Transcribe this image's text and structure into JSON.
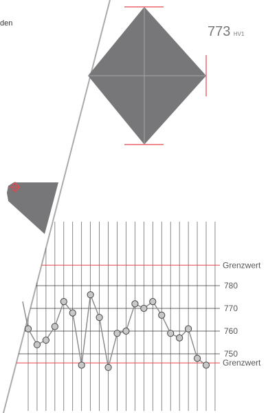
{
  "corner_text": "den",
  "indent_reading": {
    "value": "773",
    "unit": "HV1"
  },
  "colors": {
    "diamond": "#77777a",
    "red": "#e8434b",
    "grid": "#333333",
    "series": "#8c8c8c",
    "point_fill": "#c8c8c8",
    "point_stroke": "#444444",
    "indenter_line": "#aaaaaa"
  },
  "chart_data": {
    "type": "line",
    "ylim": [
      742,
      783
    ],
    "y_ticks": [
      "780",
      "770",
      "760",
      "750"
    ],
    "limits": [
      {
        "label": "Grenzwert",
        "value": 789
      },
      {
        "label": "Grenzwert",
        "value": 746
      }
    ],
    "series": [
      {
        "values": [
          761,
          754,
          756,
          762,
          773,
          768,
          745,
          776,
          766,
          744,
          759,
          760,
          772,
          770,
          773,
          767,
          759,
          757,
          761,
          748,
          745
        ]
      }
    ]
  }
}
